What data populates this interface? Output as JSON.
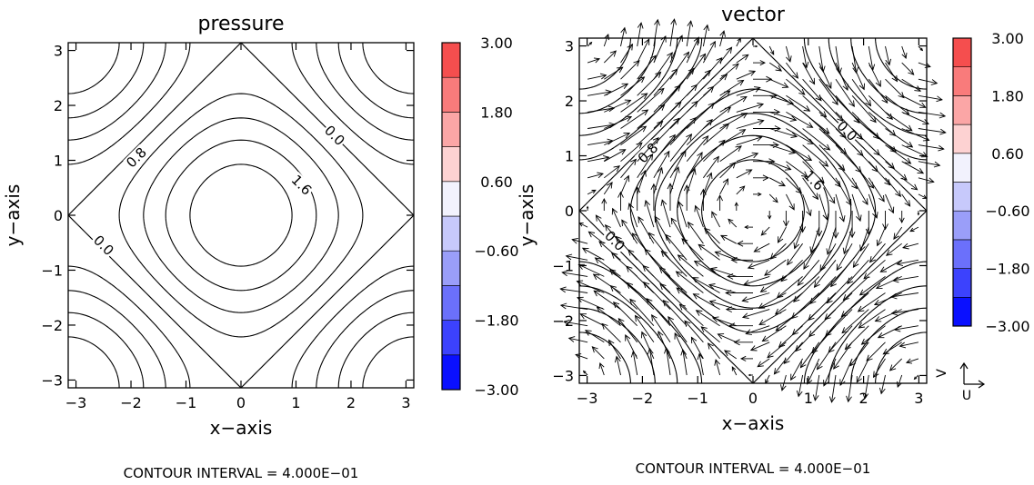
{
  "chart_data": [
    {
      "type": "contour",
      "title": "pressure",
      "xlabel": "x−axis",
      "ylabel": "y−axis",
      "xlim": [
        -3.1416,
        3.1416
      ],
      "ylim": [
        -3.1416,
        3.1416
      ],
      "xticks": [
        -3,
        -2,
        -1,
        0,
        1,
        2,
        3
      ],
      "yticks": [
        -3,
        -2,
        -1,
        0,
        1,
        2,
        3
      ],
      "field": "cos(x)+cos(y)",
      "contour_interval": 0.4,
      "contour_levels_solid": [
        0.0,
        0.4,
        0.8,
        1.2,
        1.6
      ],
      "contour_levels_dashed": [
        -0.4,
        -0.8,
        -1.2,
        -1.6
      ],
      "contour_labels": [
        {
          "text": "0.0",
          "x": 1.7,
          "y": 1.45
        },
        {
          "text": "0.8",
          "x": -1.9,
          "y": 1.05
        },
        {
          "text": "1.6",
          "x": 1.1,
          "y": 0.55
        },
        {
          "text": "0.0",
          "x": -2.5,
          "y": -0.55
        }
      ],
      "colorbar": {
        "ticks": [
          "3.00",
          "1.80",
          "0.60",
          "−0.60",
          "−1.80",
          "−3.00"
        ],
        "levels": [
          -3.0,
          -2.4,
          -1.8,
          -1.2,
          -0.6,
          0.0,
          0.6,
          1.2,
          1.8,
          2.4,
          3.0
        ],
        "colors": [
          "#0a10ff",
          "#3c42fd",
          "#6b70fb",
          "#9a9ef9",
          "#c7c9fb",
          "#f2f2fd",
          "#fdd2d2",
          "#fba6a6",
          "#f97b7b",
          "#f54e4e"
        ]
      },
      "footer": "CONTOUR INTERVAL = 4.000E−01"
    },
    {
      "type": "vector",
      "title": "vector",
      "xlabel": "x−axis",
      "ylabel": "y−axis",
      "xlim": [
        -3.1416,
        3.1416
      ],
      "ylim": [
        -3.1416,
        3.1416
      ],
      "xticks": [
        -3,
        -2,
        -1,
        0,
        1,
        2,
        3
      ],
      "yticks": [
        -3,
        -2,
        -1,
        0,
        1,
        2,
        3
      ],
      "field": "cos(x)+cos(y)",
      "vector_field": {
        "u": "sin(y)",
        "v": "-sin(x)",
        "grid": 21
      },
      "contour_interval": 0.4,
      "contour_labels": [
        {
          "text": "0.0",
          "x": 1.7,
          "y": 1.45
        },
        {
          "text": "0.8",
          "x": -1.9,
          "y": 1.05
        },
        {
          "text": "1.6",
          "x": 1.1,
          "y": 0.55
        },
        {
          "text": "0.0",
          "x": -2.5,
          "y": -0.55
        }
      ],
      "colorbar": {
        "ticks": [
          "3.00",
          "1.80",
          "0.60",
          "−0.60",
          "−1.80",
          "−3.00"
        ],
        "levels": [
          -3.0,
          -2.4,
          -1.8,
          -1.2,
          -0.6,
          0.0,
          0.6,
          1.2,
          1.8,
          2.4,
          3.0
        ],
        "colors": [
          "#0a10ff",
          "#3c42fd",
          "#6b70fb",
          "#9a9ef9",
          "#c7c9fb",
          "#f2f2fd",
          "#fdd2d2",
          "#fba6a6",
          "#f97b7b",
          "#f54e4e"
        ]
      },
      "unit_vector_labels": {
        "x": "U",
        "y": "V"
      },
      "footer": "CONTOUR INTERVAL = 4.000E−01"
    }
  ]
}
